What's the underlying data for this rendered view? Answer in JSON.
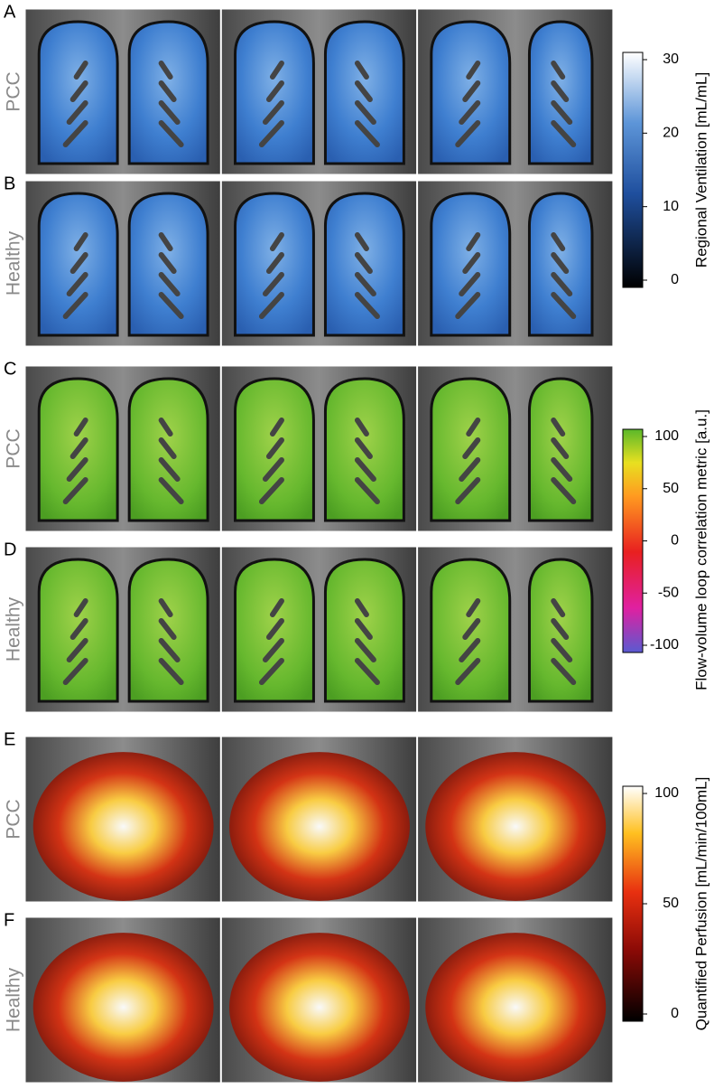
{
  "panels": [
    {
      "letter": "A",
      "label": "PCC"
    },
    {
      "letter": "B",
      "label": "Healthy"
    },
    {
      "letter": "C",
      "label": "PCC"
    },
    {
      "letter": "D",
      "label": "Healthy"
    },
    {
      "letter": "E",
      "label": "PCC"
    },
    {
      "letter": "F",
      "label": "Healthy"
    }
  ],
  "colorbars": [
    {
      "title": "Regional Ventilation [mL/mL]",
      "lim": [
        0,
        30
      ],
      "ticks": [
        0,
        10,
        20,
        30
      ]
    },
    {
      "title": "Flow-volume loop correlation metric [a.u.]",
      "lim": [
        -100,
        100
      ],
      "ticks": [
        -100,
        -50,
        0,
        50,
        100
      ]
    },
    {
      "title": "Quantified Perfusion [mL/min/100mL]",
      "lim": [
        0,
        100
      ],
      "ticks": [
        0,
        50,
        100
      ]
    }
  ]
}
